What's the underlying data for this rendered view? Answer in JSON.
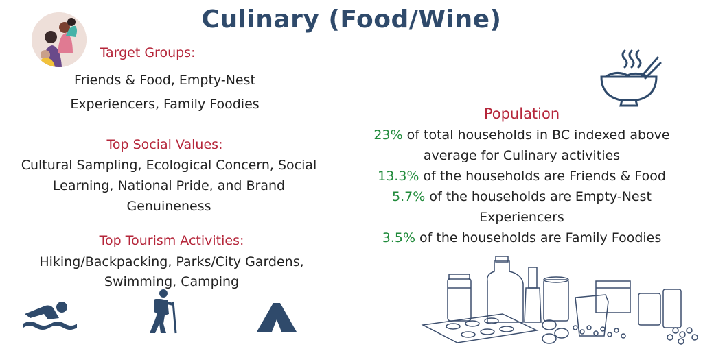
{
  "title": "Culinary (Food/Wine)",
  "target_groups": {
    "heading": "Target Groups:",
    "line1": "Friends & Food, Empty-Nest",
    "line2": "Experiencers, Family Foodies"
  },
  "social_values": {
    "heading": "Top Social Values:",
    "line1": "Cultural Sampling, Ecological Concern, Social",
    "line2": "Learning, National Pride, and Brand",
    "line3": "Genuineness"
  },
  "activities": {
    "heading": "Top Tourism Activities:",
    "line1": "Hiking/Backpacking, Parks/City Gardens,",
    "line2": "Swimming, Camping"
  },
  "population": {
    "heading": "Population",
    "stats": [
      {
        "pct": "23%",
        "text": " of total households in BC indexed above"
      },
      {
        "pct": "",
        "text": "average for Culinary activities"
      },
      {
        "pct": "13.3%",
        "text": " of the households are Friends & Food"
      },
      {
        "pct": "5.7%",
        "text": " of the households are Empty-Nest"
      },
      {
        "pct": "",
        "text": "Experiencers"
      },
      {
        "pct": "3.5%",
        "text": " of the households are Family Foodies"
      }
    ]
  },
  "icons": [
    "family-icon",
    "noodle-bowl-icon",
    "swimmer-icon",
    "hiker-icon",
    "tent-icon",
    "kitchen-items-illustration"
  ],
  "colors": {
    "title": "#2f4a6b",
    "heading": "#b5263a",
    "percent": "#1f8a3a",
    "icon": "#2f4a6b"
  }
}
